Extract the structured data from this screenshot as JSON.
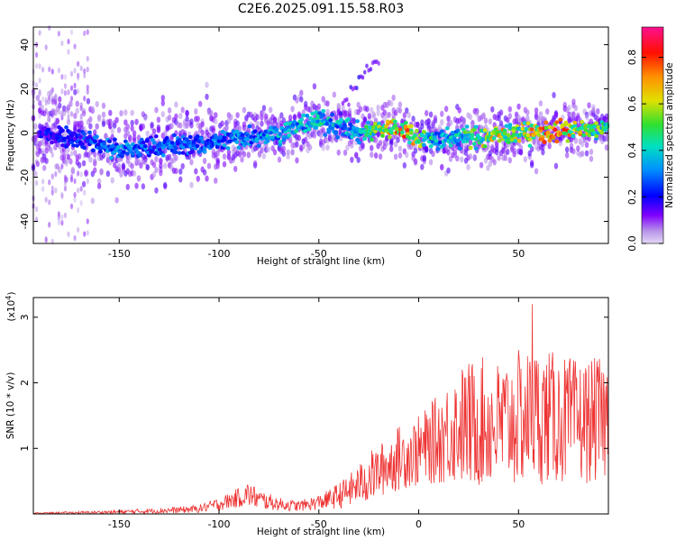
{
  "title": "C2E6.2025.091.15.58.R03",
  "colors": {
    "snr_line": "#ee3333",
    "frame": "#000000"
  },
  "chart_data": [
    {
      "type": "heatmap",
      "name": "spectrogram",
      "xlabel": "Height of straight line (km)",
      "ylabel": "Frequency (Hz)",
      "xlim": [
        -193,
        95
      ],
      "ylim": [
        -50,
        48
      ],
      "xticks": [
        -150,
        -100,
        -50,
        0,
        50
      ],
      "yticks": [
        -40,
        -20,
        0,
        20,
        40
      ],
      "colorbar": {
        "label": "Normalized spectral amplitude",
        "range": [
          0,
          0.93
        ],
        "ticks": [
          "0.0",
          "0.2",
          "0.4",
          "0.6",
          "0.8"
        ],
        "tick_values": [
          0.0,
          0.2,
          0.4,
          0.6,
          0.8
        ]
      },
      "ridge": {
        "x": [
          -190,
          -170,
          -150,
          -130,
          -110,
          -90,
          -70,
          -50,
          -40,
          -30,
          -20,
          -10,
          0,
          10,
          20,
          30,
          40,
          50,
          60,
          70,
          80,
          95
        ],
        "freq": [
          0,
          -2,
          -8,
          -6,
          -5,
          -2,
          0,
          6,
          3,
          0,
          2,
          2,
          -2,
          -3,
          -2,
          -2,
          -1,
          0,
          0,
          1,
          1,
          2
        ],
        "amplitude": [
          0.2,
          0.25,
          0.35,
          0.3,
          0.3,
          0.35,
          0.4,
          0.45,
          0.4,
          0.4,
          0.6,
          0.85,
          0.6,
          0.4,
          0.45,
          0.6,
          0.7,
          0.6,
          0.75,
          0.8,
          0.7,
          0.5
        ]
      },
      "secondary_streak": {
        "x": [
          -40,
          -20
        ],
        "freq": [
          10,
          35
        ]
      }
    },
    {
      "type": "line",
      "name": "snr",
      "xlabel": "Height of straight line (km)",
      "ylabel": "SNR (10 * v/v)",
      "multiplier": "(x10",
      "multiplier_exp": "4",
      "multiplier_close": ")",
      "xlim": [
        -193,
        95
      ],
      "ylim": [
        0,
        3.3
      ],
      "xticks": [
        -150,
        -100,
        -50,
        0,
        50
      ],
      "yticks": [
        1,
        2,
        3
      ],
      "envelope": {
        "x": [
          -193,
          -170,
          -150,
          -120,
          -110,
          -100,
          -90,
          -85,
          -80,
          -70,
          -60,
          -50,
          -45,
          -40,
          -35,
          -30,
          -25,
          -20,
          -15,
          -10,
          -5,
          0,
          5,
          10,
          15,
          20,
          25,
          30,
          40,
          50,
          60,
          70,
          80,
          95
        ],
        "mean": [
          0.01,
          0.02,
          0.03,
          0.06,
          0.08,
          0.15,
          0.25,
          0.3,
          0.22,
          0.15,
          0.12,
          0.18,
          0.22,
          0.28,
          0.35,
          0.45,
          0.55,
          0.65,
          0.75,
          0.85,
          0.9,
          0.95,
          1.05,
          1.15,
          1.25,
          1.35,
          1.35,
          1.4,
          1.35,
          1.45,
          1.5,
          1.45,
          1.4,
          1.45
        ],
        "spread": [
          0.01,
          0.02,
          0.03,
          0.05,
          0.06,
          0.1,
          0.15,
          0.2,
          0.15,
          0.1,
          0.08,
          0.12,
          0.15,
          0.2,
          0.25,
          0.3,
          0.4,
          0.4,
          0.45,
          0.5,
          0.5,
          0.55,
          0.6,
          0.7,
          0.8,
          0.9,
          1.0,
          1.0,
          1.0,
          1.05,
          1.05,
          1.0,
          0.95,
          0.95
        ],
        "peak": {
          "x": 57,
          "y": 3.2
        }
      }
    }
  ]
}
